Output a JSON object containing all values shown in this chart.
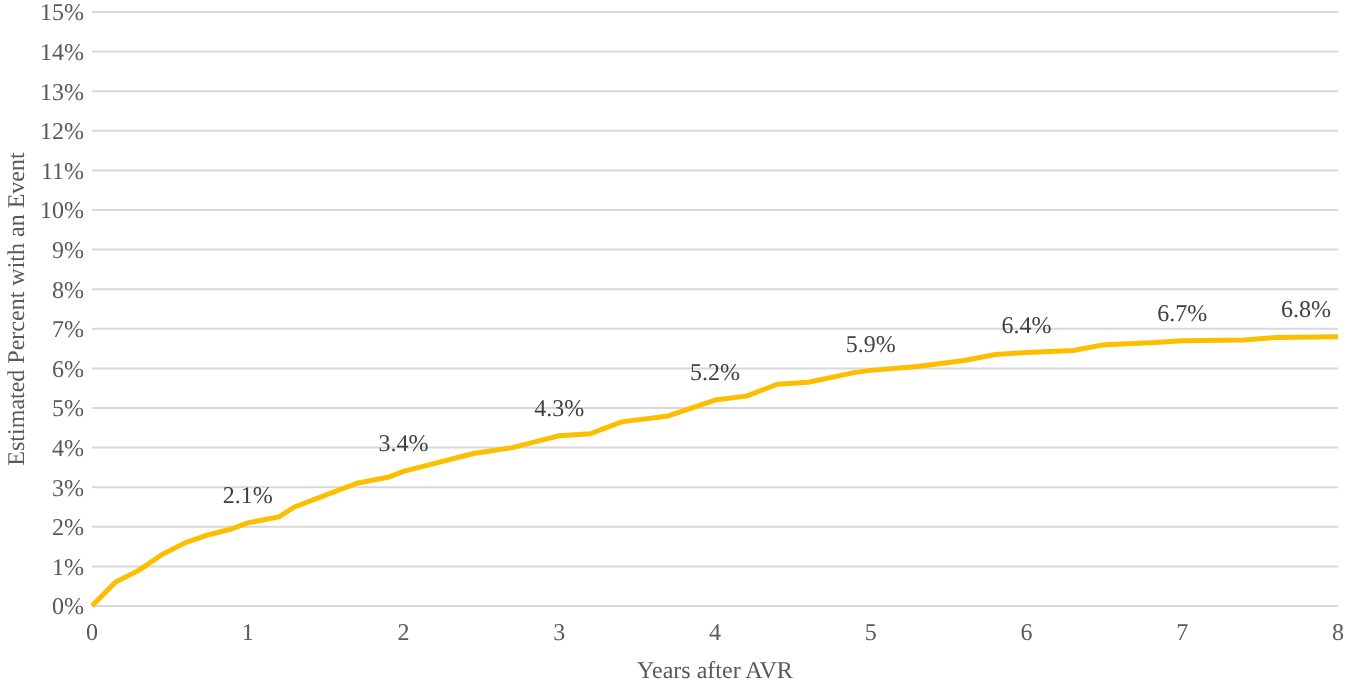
{
  "chart_data": {
    "type": "line",
    "xlabel": "Years after AVR",
    "ylabel": "Estimated Percent with an Event",
    "x": [
      0,
      0.05,
      0.15,
      0.3,
      0.45,
      0.6,
      0.75,
      0.9,
      1,
      1.2,
      1.3,
      1.5,
      1.7,
      1.9,
      2,
      2.2,
      2.45,
      2.7,
      2.9,
      3,
      3.2,
      3.4,
      3.7,
      4,
      4.2,
      4.4,
      4.6,
      4.9,
      5,
      5.3,
      5.6,
      5.8,
      6,
      6.3,
      6.5,
      6.8,
      7,
      7.4,
      7.6,
      8
    ],
    "series": [
      {
        "color": "#fbbf00",
        "values": [
          0,
          0.2,
          0.6,
          0.9,
          1.3,
          1.6,
          1.8,
          1.95,
          2.1,
          2.25,
          2.5,
          2.8,
          3.1,
          3.25,
          3.4,
          3.6,
          3.85,
          4.0,
          4.2,
          4.3,
          4.35,
          4.65,
          4.8,
          5.2,
          5.3,
          5.6,
          5.65,
          5.9,
          5.95,
          6.05,
          6.2,
          6.35,
          6.4,
          6.45,
          6.6,
          6.65,
          6.7,
          6.72,
          6.78,
          6.8
        ]
      }
    ],
    "xlim": [
      0,
      8
    ],
    "xticks": [
      0,
      1,
      2,
      3,
      4,
      5,
      6,
      7,
      8
    ],
    "ylim": [
      0,
      15
    ],
    "yticks": [
      {
        "value": 0,
        "label": "0%"
      },
      {
        "value": 1,
        "label": "1%"
      },
      {
        "value": 2,
        "label": "2%"
      },
      {
        "value": 3,
        "label": "3%"
      },
      {
        "value": 4,
        "label": "4%"
      },
      {
        "value": 5,
        "label": "5%"
      },
      {
        "value": 6,
        "label": "6%"
      },
      {
        "value": 7,
        "label": "7%"
      },
      {
        "value": 8,
        "label": "8%"
      },
      {
        "value": 9,
        "label": "9%"
      },
      {
        "value": 10,
        "label": "10%"
      },
      {
        "value": 11,
        "label": "11%"
      },
      {
        "value": 12,
        "label": "12%"
      },
      {
        "value": 13,
        "label": "13%"
      },
      {
        "value": 14,
        "label": "14%"
      },
      {
        "value": 15,
        "label": "15%"
      }
    ],
    "grid": "y",
    "annotations": [
      {
        "text": "2.1%",
        "x": 1,
        "y": 2.1
      },
      {
        "text": "3.4%",
        "x": 2,
        "y": 3.4
      },
      {
        "text": "4.3%",
        "x": 3,
        "y": 4.3
      },
      {
        "text": "5.2%",
        "x": 4,
        "y": 5.2
      },
      {
        "text": "5.9%",
        "x": 5,
        "y": 5.9
      },
      {
        "text": "6.4%",
        "x": 6,
        "y": 6.4
      },
      {
        "text": "6.7%",
        "x": 7,
        "y": 6.7
      },
      {
        "text": "6.8%",
        "x": 8,
        "y": 6.8
      }
    ]
  }
}
